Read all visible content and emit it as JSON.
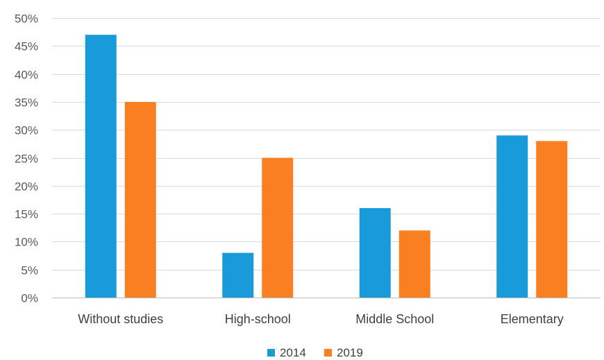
{
  "chart_data": {
    "type": "bar",
    "title": "",
    "xlabel": "",
    "ylabel": "",
    "categories": [
      "Without studies",
      "High-school",
      "Middle School",
      "Elementary"
    ],
    "series": [
      {
        "name": "2014",
        "values": [
          47,
          8,
          16,
          29
        ],
        "color": "#1a9bd9"
      },
      {
        "name": "2019",
        "values": [
          35,
          25,
          12,
          28
        ],
        "color": "#fa7f21"
      }
    ],
    "ylim": [
      0,
      50
    ],
    "yticks": [
      0,
      5,
      10,
      15,
      20,
      25,
      30,
      35,
      40,
      45,
      50
    ],
    "ytick_labels": [
      "0%",
      "5%",
      "10%",
      "15%",
      "20%",
      "25%",
      "30%",
      "35%",
      "40%",
      "45%",
      "50%"
    ],
    "grid": true,
    "legend_position": "bottom"
  }
}
